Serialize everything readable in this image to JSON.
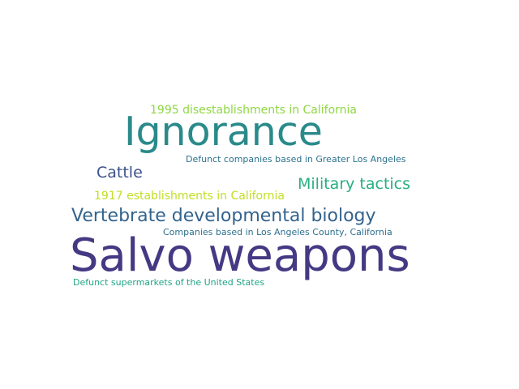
{
  "words": [
    {
      "text": "Salvo weapons",
      "color": "#443983"
    },
    {
      "text": "Ignorance",
      "color": "#2a8a8a"
    },
    {
      "text": "Vertebrate developmental biology",
      "color": "#33638d"
    },
    {
      "text": "Military tactics",
      "color": "#28ae80"
    },
    {
      "text": "Cattle",
      "color": "#3b528b"
    },
    {
      "text": "1995 disestablishments in California",
      "color": "#8fd744"
    },
    {
      "text": "1917 establishments in California",
      "color": "#c2df23"
    },
    {
      "text": "Defunct companies based in Greater Los Angeles",
      "color": "#2c728e"
    },
    {
      "text": "Companies based in Los Angeles County, California",
      "color": "#2d708e"
    },
    {
      "text": "Defunct supermarkets of the United States",
      "color": "#20a386"
    }
  ]
}
